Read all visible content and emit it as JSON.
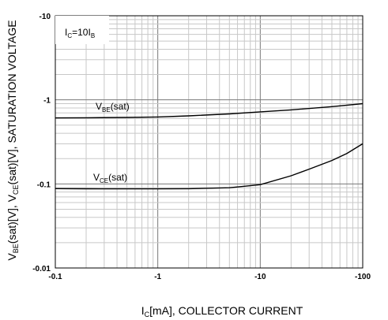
{
  "chart_data": {
    "type": "line",
    "x_scale": "log",
    "y_scale": "log",
    "xlim": [
      -0.1,
      -100
    ],
    "ylim": [
      -0.01,
      -10
    ],
    "x_tick_labels": [
      "-0.1",
      "-1",
      "-10",
      "-100"
    ],
    "y_tick_labels": [
      "-10",
      "-1",
      "-0.1",
      "-0.01"
    ],
    "xlabel": {
      "main": "I",
      "sub": "C",
      "rest": "[mA], COLLECTOR CURRENT"
    },
    "ylabel": {
      "p1": "V",
      "s1": "BE",
      "p2": "(sat)[V], V",
      "s2": "CE",
      "p3": "(sat)[V], SATURATION VOLTAGE"
    },
    "grid": true,
    "condition": {
      "p1": "I",
      "s1": "C",
      "p2": "=10I",
      "s2": "B"
    },
    "series": [
      {
        "label_main": "V",
        "label_sub": "BE",
        "label_rest": "(sat)",
        "x": [
          -0.1,
          -0.2,
          -0.5,
          -1,
          -2,
          -5,
          -10,
          -20,
          -50,
          -100
        ],
        "values": [
          -0.61,
          -0.612,
          -0.618,
          -0.625,
          -0.645,
          -0.68,
          -0.72,
          -0.76,
          -0.83,
          -0.9
        ]
      },
      {
        "label_main": "V",
        "label_sub": "CE",
        "label_rest": "(sat)",
        "x": [
          -0.1,
          -0.2,
          -0.5,
          -1,
          -2,
          -5,
          -10,
          -20,
          -30,
          -50,
          -70,
          -100
        ],
        "values": [
          -0.088,
          -0.0876,
          -0.0874,
          -0.0874,
          -0.0878,
          -0.09,
          -0.098,
          -0.125,
          -0.15,
          -0.19,
          -0.23,
          -0.3
        ]
      }
    ]
  }
}
